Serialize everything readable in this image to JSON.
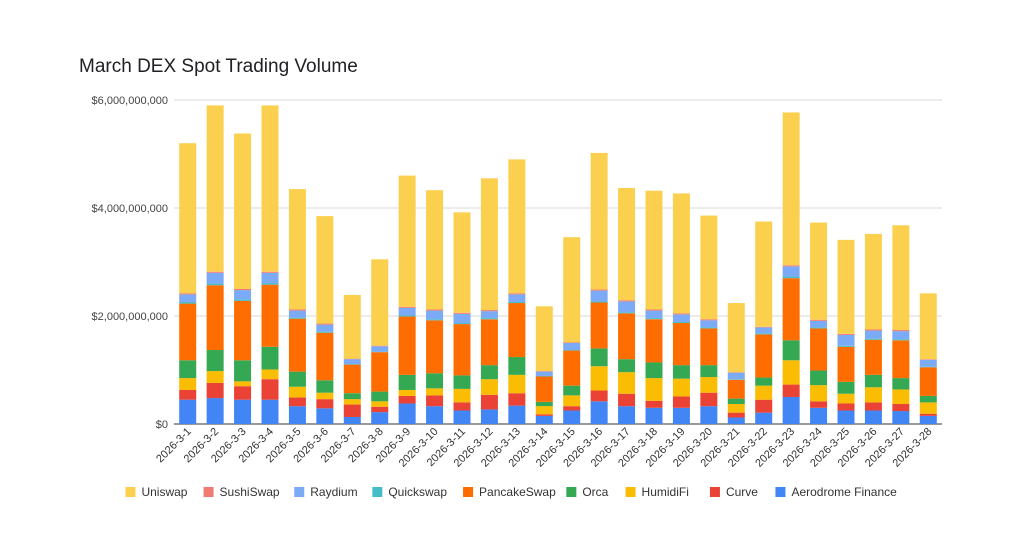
{
  "chart_data": {
    "type": "bar",
    "stacked": true,
    "title": "March DEX Spot Trading Volume",
    "xlabel": "",
    "ylabel": "",
    "ylim": [
      0,
      6000000000
    ],
    "y_ticks": [
      "$0",
      "$2,000,000,000",
      "$4,000,000,000",
      "$6,000,000,000"
    ],
    "y_tick_values": [
      0,
      2000000000,
      4000000000,
      6000000000
    ],
    "grid": true,
    "legend_position": "bottom",
    "categories": [
      "2026-3-1",
      "2026-3-2",
      "2026-3-3",
      "2026-3-4",
      "2026-3-5",
      "2026-3-6",
      "2026-3-7",
      "2026-3-8",
      "2026-3-9",
      "2026-3-10",
      "2026-3-11",
      "2026-3-12",
      "2026-3-13",
      "2026-3-14",
      "2026-3-15",
      "2026-3-16",
      "2026-3-17",
      "2026-3-18",
      "2026-3-19",
      "2026-3-20",
      "2026-3-21",
      "2026-3-22",
      "2026-3-23",
      "2026-3-24",
      "2026-3-25",
      "2026-3-26",
      "2026-3-27",
      "2026-3-28"
    ],
    "series": [
      {
        "name": "Aerodrome Finance",
        "color": "#4285f4",
        "values": [
          450000000,
          480000000,
          450000000,
          450000000,
          330000000,
          290000000,
          130000000,
          220000000,
          380000000,
          330000000,
          250000000,
          270000000,
          340000000,
          150000000,
          250000000,
          420000000,
          330000000,
          300000000,
          300000000,
          330000000,
          120000000,
          210000000,
          500000000,
          300000000,
          250000000,
          250000000,
          240000000,
          150000000
        ]
      },
      {
        "name": "Curve",
        "color": "#ea4335",
        "values": [
          180000000,
          280000000,
          250000000,
          380000000,
          160000000,
          170000000,
          230000000,
          100000000,
          140000000,
          200000000,
          150000000,
          270000000,
          230000000,
          30000000,
          80000000,
          200000000,
          230000000,
          130000000,
          210000000,
          250000000,
          90000000,
          240000000,
          230000000,
          120000000,
          130000000,
          150000000,
          130000000,
          40000000
        ]
      },
      {
        "name": "HumidiFi",
        "color": "#fbbc04",
        "values": [
          220000000,
          220000000,
          90000000,
          180000000,
          200000000,
          120000000,
          100000000,
          100000000,
          110000000,
          130000000,
          250000000,
          290000000,
          340000000,
          150000000,
          200000000,
          450000000,
          400000000,
          420000000,
          330000000,
          290000000,
          160000000,
          260000000,
          450000000,
          300000000,
          180000000,
          280000000,
          270000000,
          210000000
        ]
      },
      {
        "name": "Orca",
        "color": "#34a853",
        "values": [
          330000000,
          390000000,
          390000000,
          420000000,
          280000000,
          230000000,
          110000000,
          180000000,
          280000000,
          280000000,
          250000000,
          260000000,
          330000000,
          80000000,
          180000000,
          330000000,
          240000000,
          290000000,
          250000000,
          220000000,
          100000000,
          150000000,
          370000000,
          270000000,
          220000000,
          230000000,
          210000000,
          120000000
        ]
      },
      {
        "name": "PancakeSwap",
        "color": "#ff6d01",
        "values": [
          1050000000,
          1200000000,
          1100000000,
          1150000000,
          980000000,
          880000000,
          530000000,
          730000000,
          1080000000,
          980000000,
          950000000,
          850000000,
          1000000000,
          470000000,
          650000000,
          850000000,
          850000000,
          800000000,
          780000000,
          680000000,
          350000000,
          800000000,
          1150000000,
          780000000,
          650000000,
          650000000,
          700000000,
          530000000
        ]
      },
      {
        "name": "Quickswap",
        "color": "#46bdc6",
        "values": [
          30000000,
          30000000,
          30000000,
          30000000,
          20000000,
          20000000,
          10000000,
          10000000,
          20000000,
          20000000,
          20000000,
          20000000,
          20000000,
          10000000,
          10000000,
          20000000,
          20000000,
          20000000,
          20000000,
          20000000,
          10000000,
          20000000,
          30000000,
          20000000,
          20000000,
          20000000,
          20000000,
          10000000
        ]
      },
      {
        "name": "Raydium",
        "color": "#7baaf7",
        "values": [
          140000000,
          200000000,
          170000000,
          190000000,
          130000000,
          130000000,
          90000000,
          100000000,
          140000000,
          160000000,
          170000000,
          130000000,
          140000000,
          80000000,
          130000000,
          200000000,
          200000000,
          140000000,
          140000000,
          130000000,
          120000000,
          110000000,
          190000000,
          120000000,
          200000000,
          150000000,
          150000000,
          130000000
        ]
      },
      {
        "name": "SushiSwap",
        "color": "#f07b72",
        "values": [
          20000000,
          20000000,
          20000000,
          20000000,
          20000000,
          20000000,
          10000000,
          10000000,
          20000000,
          20000000,
          20000000,
          20000000,
          20000000,
          10000000,
          10000000,
          20000000,
          20000000,
          20000000,
          20000000,
          20000000,
          10000000,
          10000000,
          20000000,
          20000000,
          20000000,
          20000000,
          20000000,
          10000000
        ]
      },
      {
        "name": "Uniswap",
        "color": "#fcd04f",
        "values": [
          2780000000,
          3080000000,
          2880000000,
          3080000000,
          2230000000,
          1990000000,
          1180000000,
          1600000000,
          2430000000,
          2210000000,
          1860000000,
          2440000000,
          2480000000,
          1200000000,
          1950000000,
          2530000000,
          2080000000,
          2200000000,
          2220000000,
          1920000000,
          1280000000,
          1950000000,
          2830000000,
          1800000000,
          1740000000,
          1770000000,
          1940000000,
          1220000000
        ]
      }
    ],
    "legend_order": [
      "Uniswap",
      "SushiSwap",
      "Raydium",
      "Quickswap",
      "PancakeSwap",
      "Orca",
      "HumidiFi",
      "Curve",
      "Aerodrome Finance"
    ]
  }
}
